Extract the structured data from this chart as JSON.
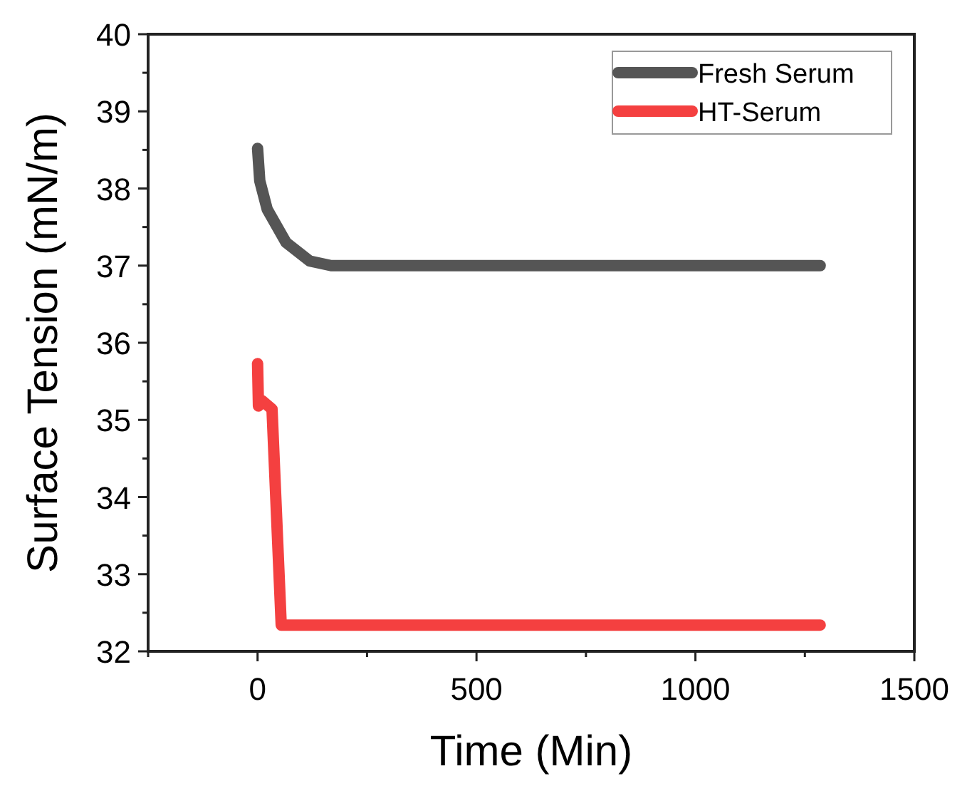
{
  "chart_data": {
    "type": "line",
    "xlabel": "Time (Min)",
    "ylabel": "Surface Tension (mN/m)",
    "xlim": [
      -250,
      1500
    ],
    "ylim": [
      32,
      40
    ],
    "xticks": [
      {
        "value": -250,
        "label": null
      },
      0,
      {
        "value": 250,
        "label": null
      },
      500,
      {
        "value": 750,
        "label": null
      },
      1000,
      {
        "value": 1250,
        "label": null
      },
      1500
    ],
    "yticks": [
      32,
      {
        "value": 32.5,
        "label": null
      },
      33,
      {
        "value": 33.5,
        "label": null
      },
      34,
      {
        "value": 34.5,
        "label": null
      },
      35,
      {
        "value": 35.5,
        "label": null
      },
      36,
      {
        "value": 36.5,
        "label": null
      },
      37,
      {
        "value": 37.5,
        "label": null
      },
      38,
      {
        "value": 38.5,
        "label": null
      },
      39,
      {
        "value": 39.5,
        "label": null
      },
      40
    ],
    "grid": false,
    "legend": "top right",
    "line_style": "solid",
    "marker": "none",
    "series": [
      {
        "name": "Fresh Serum",
        "color": "#555555",
        "x": [
          0,
          5,
          22,
          65,
          119,
          168,
          1285
        ],
        "values": [
          38.52,
          38.1,
          37.73,
          37.3,
          37.06,
          37.0,
          37.0
        ]
      },
      {
        "name": "HT-Serum",
        "color": "#f44040",
        "x": [
          0,
          2,
          10,
          33,
          54,
          1285
        ],
        "values": [
          35.73,
          35.18,
          35.25,
          35.14,
          32.34,
          32.34
        ]
      }
    ]
  }
}
